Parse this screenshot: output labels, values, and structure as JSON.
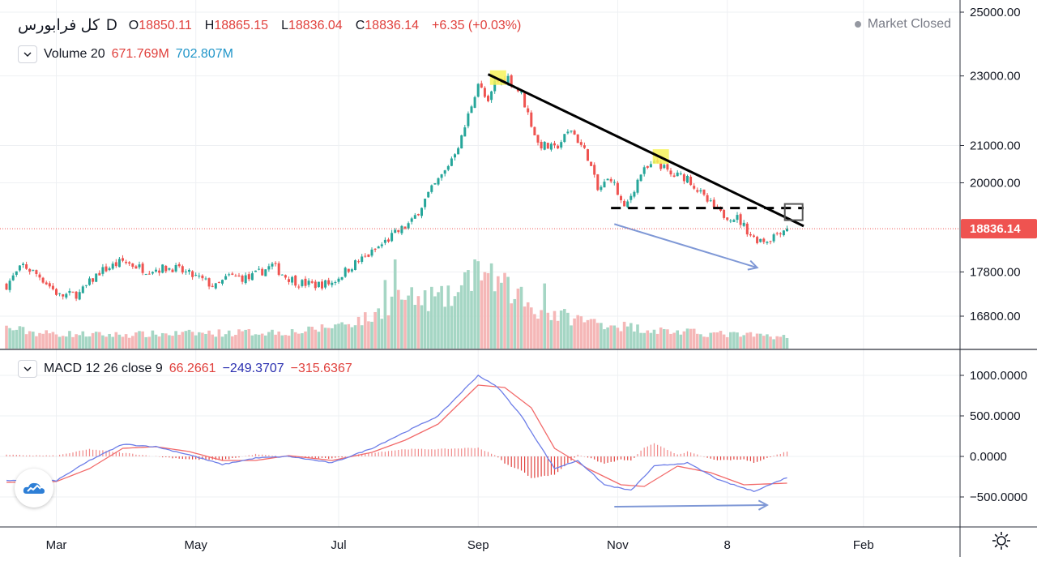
{
  "header": {
    "symbol": "کل فرابورس",
    "interval": "D",
    "open_label": "O",
    "open": "18850.11",
    "high_label": "H",
    "high": "18865.15",
    "low_label": "L",
    "low": "18836.04",
    "close_label": "C",
    "close": "18836.14",
    "change": "+6.35 (+0.03%)",
    "market_status": "Market Closed"
  },
  "volume_legend": {
    "label": "Volume 20",
    "value1": "671.769M",
    "value2": "702.807M"
  },
  "macd_legend": {
    "label": "MACD 12 26 close 9",
    "hist": "66.2661",
    "macd": "−249.3707",
    "signal": "−315.6367"
  },
  "icons": {
    "collapse": "chevron-down-icon",
    "logo": "tradingview-cloud-icon",
    "settings": "gear-icon"
  },
  "colors": {
    "up": "#26a69a",
    "down": "#ef5350",
    "vol_up": "#a5d6c4",
    "vol_down": "#f5b7b7",
    "macd_line": "#6d7ee8",
    "signal_line": "#f26a6a",
    "price_tag": "#ef5350"
  },
  "chart_data": [
    {
      "type": "candlestick",
      "y_scale": "log",
      "ylim": [
        15900,
        25400
      ],
      "yticks": [
        16800,
        17800,
        20000,
        21000,
        23000,
        25000
      ],
      "ytick_labels": [
        "16800.00",
        "17800.00",
        "20000.00",
        "21000.00",
        "23000.00",
        "25000.00"
      ],
      "last_price_label": "18836.14",
      "last_price": 18836.14,
      "x_ticks": [
        "Mar",
        "May",
        "Jul",
        "Sep",
        "Nov",
        "8",
        "Feb"
      ],
      "x_tick_index": [
        15,
        57,
        100,
        142,
        184,
        217,
        258
      ],
      "n_bars": 236,
      "anchors": [
        [
          0,
          17500
        ],
        [
          5,
          17950
        ],
        [
          10,
          17700
        ],
        [
          16,
          17250
        ],
        [
          22,
          17300
        ],
        [
          28,
          17800
        ],
        [
          35,
          18050
        ],
        [
          42,
          17850
        ],
        [
          50,
          17900
        ],
        [
          58,
          17650
        ],
        [
          63,
          17450
        ],
        [
          67,
          17700
        ],
        [
          73,
          17650
        ],
        [
          80,
          17950
        ],
        [
          84,
          17700
        ],
        [
          88,
          17550
        ],
        [
          93,
          17500
        ],
        [
          98,
          17550
        ],
        [
          104,
          17950
        ],
        [
          110,
          18250
        ],
        [
          116,
          18650
        ],
        [
          122,
          19000
        ],
        [
          127,
          19700
        ],
        [
          132,
          20300
        ],
        [
          137,
          21200
        ],
        [
          142,
          22800
        ],
        [
          145,
          22150
        ],
        [
          147,
          22800
        ],
        [
          151,
          22950
        ],
        [
          155,
          22450
        ],
        [
          160,
          21050
        ],
        [
          165,
          20900
        ],
        [
          170,
          21450
        ],
        [
          175,
          20700
        ],
        [
          178,
          19800
        ],
        [
          182,
          20150
        ],
        [
          186,
          19300
        ],
        [
          191,
          20250
        ],
        [
          196,
          20550
        ],
        [
          200,
          20200
        ],
        [
          205,
          20150
        ],
        [
          210,
          19600
        ],
        [
          215,
          19200
        ],
        [
          220,
          19100
        ],
        [
          225,
          18600
        ],
        [
          229,
          18550
        ],
        [
          233,
          18800
        ],
        [
          235,
          18836.14
        ]
      ],
      "volume": {
        "label": "Volume 20",
        "anchors": [
          [
            0,
            60
          ],
          [
            10,
            45
          ],
          [
            30,
            40
          ],
          [
            60,
            45
          ],
          [
            90,
            50
          ],
          [
            100,
            70
          ],
          [
            110,
            90
          ],
          [
            118,
            150
          ],
          [
            125,
            140
          ],
          [
            135,
            150
          ],
          [
            142,
            230
          ],
          [
            150,
            180
          ],
          [
            160,
            110
          ],
          [
            175,
            80
          ],
          [
            190,
            60
          ],
          [
            200,
            50
          ],
          [
            220,
            40
          ],
          [
            235,
            35
          ]
        ],
        "spikes": [
          [
            114,
            200
          ],
          [
            117,
            260
          ],
          [
            128,
            180
          ],
          [
            141,
            260
          ],
          [
            145,
            220
          ],
          [
            155,
            180
          ],
          [
            162,
            190
          ]
        ]
      },
      "annotations": {
        "trendline": {
          "from": [
            145,
            23050
          ],
          "to": [
            240,
            18900
          ]
        },
        "support_dashed": {
          "from": [
            182,
            19350
          ],
          "to": [
            240,
            19350
          ]
        },
        "highlight_boxes": [
          [
            148,
            22950
          ],
          [
            197,
            20700
          ]
        ],
        "target_box": [
          237,
          19250
        ],
        "divergence_arrow": {
          "from": [
            183,
            18950
          ],
          "to": [
            226,
            17900
          ]
        }
      }
    },
    {
      "type": "macd",
      "label": "MACD 12 26 close 9",
      "ylim": [
        -750,
        1200
      ],
      "yticks": [
        -500,
        0,
        500,
        1000
      ],
      "ytick_labels": [
        "−500.0000",
        "0.0000",
        "500.0000",
        "1000.0000"
      ],
      "macd_anchors": [
        [
          0,
          -300
        ],
        [
          15,
          -300
        ],
        [
          25,
          -50
        ],
        [
          35,
          150
        ],
        [
          45,
          120
        ],
        [
          55,
          20
        ],
        [
          65,
          -100
        ],
        [
          75,
          -20
        ],
        [
          85,
          0
        ],
        [
          98,
          -80
        ],
        [
          110,
          100
        ],
        [
          120,
          300
        ],
        [
          130,
          500
        ],
        [
          142,
          1000
        ],
        [
          148,
          850
        ],
        [
          155,
          500
        ],
        [
          165,
          -150
        ],
        [
          172,
          -50
        ],
        [
          180,
          -350
        ],
        [
          188,
          -420
        ],
        [
          195,
          -120
        ],
        [
          205,
          -80
        ],
        [
          215,
          -300
        ],
        [
          225,
          -430
        ],
        [
          235,
          -260
        ]
      ],
      "signal_anchors": [
        [
          0,
          -320
        ],
        [
          15,
          -310
        ],
        [
          25,
          -150
        ],
        [
          35,
          100
        ],
        [
          45,
          120
        ],
        [
          55,
          60
        ],
        [
          65,
          -50
        ],
        [
          75,
          -50
        ],
        [
          85,
          10
        ],
        [
          98,
          -50
        ],
        [
          110,
          50
        ],
        [
          120,
          200
        ],
        [
          130,
          400
        ],
        [
          142,
          880
        ],
        [
          150,
          850
        ],
        [
          158,
          600
        ],
        [
          165,
          100
        ],
        [
          175,
          -150
        ],
        [
          185,
          -350
        ],
        [
          192,
          -370
        ],
        [
          202,
          -120
        ],
        [
          212,
          -200
        ],
        [
          222,
          -350
        ],
        [
          235,
          -330
        ]
      ],
      "divergence_arrow": {
        "from": [
          183,
          -620
        ],
        "to": [
          229,
          -600
        ]
      }
    }
  ]
}
